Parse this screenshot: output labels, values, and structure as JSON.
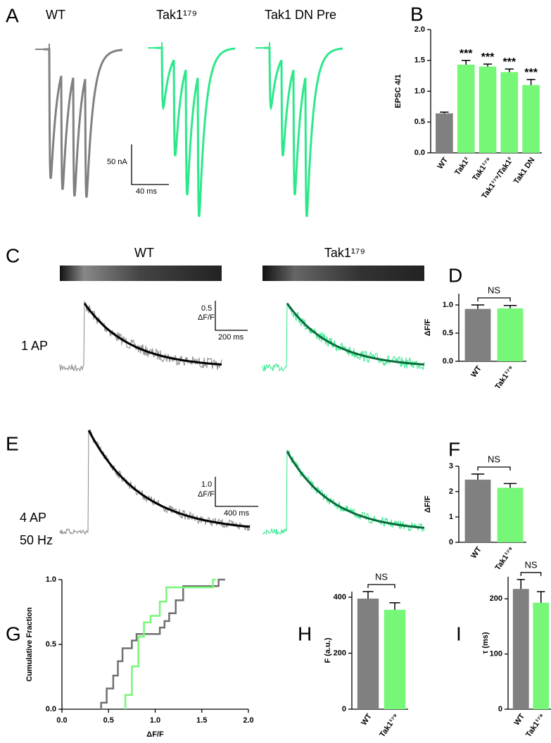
{
  "panel_letters": [
    "A",
    "B",
    "C",
    "D",
    "E",
    "F",
    "G",
    "H",
    "I"
  ],
  "panel_a": {
    "traces": [
      "WT",
      "Tak1¹⁷⁹",
      "Tak1 DN Pre"
    ],
    "scale_y": "50 nA",
    "scale_x": "40 ms"
  },
  "panel_c": {
    "traces": [
      "WT",
      "Tak1¹⁷⁹"
    ],
    "row": "1 AP",
    "scale_y": "0.5",
    "scale_unit": "ΔF/F",
    "scale_x": "200 ms"
  },
  "panel_e": {
    "row": [
      "4 AP",
      "50 Hz"
    ],
    "scale_y": "1.0",
    "scale_unit": "ΔF/F",
    "scale_x": "400 ms"
  },
  "chart_data": [
    {
      "type": "bar",
      "ylabel": "EPSC 4/1",
      "categories": [
        "WT",
        "Tak1²",
        "Tak1¹⁷⁹",
        "Tak1¹⁷⁹/Tak1²",
        "Tak1 DN"
      ],
      "values": [
        0.64,
        1.43,
        1.4,
        1.31,
        1.1
      ],
      "errors": [
        0.02,
        0.07,
        0.04,
        0.05,
        0.09
      ],
      "annotations": [
        null,
        "***",
        "***",
        "***",
        "***"
      ],
      "colors": [
        "#808080",
        "#77f777",
        "#77f777",
        "#77f777",
        "#77f777"
      ],
      "ylim": [
        0,
        2
      ],
      "yticks": [
        {
          "value": 0,
          "label": "0.0"
        },
        {
          "value": 0.5,
          "label": "0.5"
        },
        {
          "value": 1,
          "label": "1.0"
        },
        {
          "value": 1.5,
          "label": "1.5"
        },
        {
          "value": 2,
          "label": "2.0"
        }
      ]
    },
    {
      "type": "bar",
      "ylabel": "ΔF/F",
      "categories": [
        "WT",
        "Tak1¹⁷⁹"
      ],
      "values": [
        0.93,
        0.94
      ],
      "errors": [
        0.07,
        0.05
      ],
      "annotation": "NS",
      "colors": [
        "#808080",
        "#77f777"
      ],
      "ylim": [
        0,
        1.2
      ],
      "yticks": [
        {
          "value": 0,
          "label": "0.0"
        },
        {
          "value": 0.5,
          "label": "0.5"
        },
        {
          "value": 1,
          "label": "1.0"
        }
      ]
    },
    {
      "type": "bar",
      "ylabel": "ΔF/F",
      "categories": [
        "WT",
        "Tak1¹⁷⁹"
      ],
      "values": [
        2.47,
        2.15
      ],
      "errors": [
        0.22,
        0.17
      ],
      "annotation": "NS",
      "colors": [
        "#808080",
        "#77f777"
      ],
      "ylim": [
        0,
        3
      ],
      "yticks": [
        0,
        1,
        2,
        3
      ]
    },
    {
      "type": "line",
      "xlabel": "ΔF/F",
      "ylabel": "Cumulative Fraction",
      "xlim": [
        0,
        2
      ],
      "ylim": [
        0,
        1
      ],
      "xticks": [
        {
          "value": 0,
          "label": "0.0"
        },
        {
          "value": 0.5,
          "label": "0.5"
        },
        {
          "value": 1,
          "label": "1.0"
        },
        {
          "value": 1.5,
          "label": "1.5"
        },
        {
          "value": 2,
          "label": "2.0"
        }
      ],
      "yticks": [
        {
          "value": 0,
          "label": "0.0"
        },
        {
          "value": 0.5,
          "label": "0.5"
        },
        {
          "value": 1,
          "label": "1.0"
        }
      ],
      "series": [
        {
          "color": "#707070",
          "x": [
            0.42,
            0.42,
            0.48,
            0.48,
            0.55,
            0.55,
            0.6,
            0.6,
            0.65,
            0.65,
            0.75,
            0.75,
            0.8,
            0.8,
            1.05,
            1.05,
            1.1,
            1.1,
            1.15,
            1.15,
            1.22,
            1.22,
            1.3,
            1.3,
            1.68,
            1.68,
            1.75
          ],
          "values": [
            0,
            0.05,
            0.05,
            0.16,
            0.16,
            0.26,
            0.26,
            0.37,
            0.37,
            0.47,
            0.47,
            0.53,
            0.53,
            0.58,
            0.58,
            0.63,
            0.63,
            0.68,
            0.68,
            0.74,
            0.74,
            0.84,
            0.84,
            0.95,
            0.95,
            1,
            1
          ]
        },
        {
          "color": "#77f777",
          "x": [
            0.68,
            0.68,
            0.75,
            0.75,
            0.82,
            0.82,
            0.88,
            0.88,
            0.95,
            0.95,
            1.05,
            1.05,
            1.12,
            1.12,
            1.62,
            1.62,
            1.65
          ],
          "values": [
            0,
            0.11,
            0.11,
            0.33,
            0.33,
            0.56,
            0.56,
            0.67,
            0.67,
            0.72,
            0.72,
            0.83,
            0.83,
            0.94,
            0.94,
            1,
            1
          ]
        }
      ]
    },
    {
      "type": "bar",
      "ylabel": "F (a.u.)",
      "categories": [
        "WT",
        "Tak1¹⁷⁹"
      ],
      "values": [
        395,
        355
      ],
      "errors": [
        25,
        25
      ],
      "annotation": "NS",
      "colors": [
        "#808080",
        "#77f777"
      ],
      "ylim": [
        0,
        420
      ],
      "yticks": [
        0,
        200,
        400
      ]
    },
    {
      "type": "bar",
      "ylabel": "τ (ms)",
      "categories": [
        "WT",
        "Tak1¹⁷⁹"
      ],
      "values": [
        218,
        193
      ],
      "errors": [
        17,
        20
      ],
      "annotation": "NS",
      "colors": [
        "#808080",
        "#77f777"
      ],
      "ylim": [
        0,
        240
      ],
      "yticks": [
        0,
        100,
        200
      ]
    }
  ]
}
